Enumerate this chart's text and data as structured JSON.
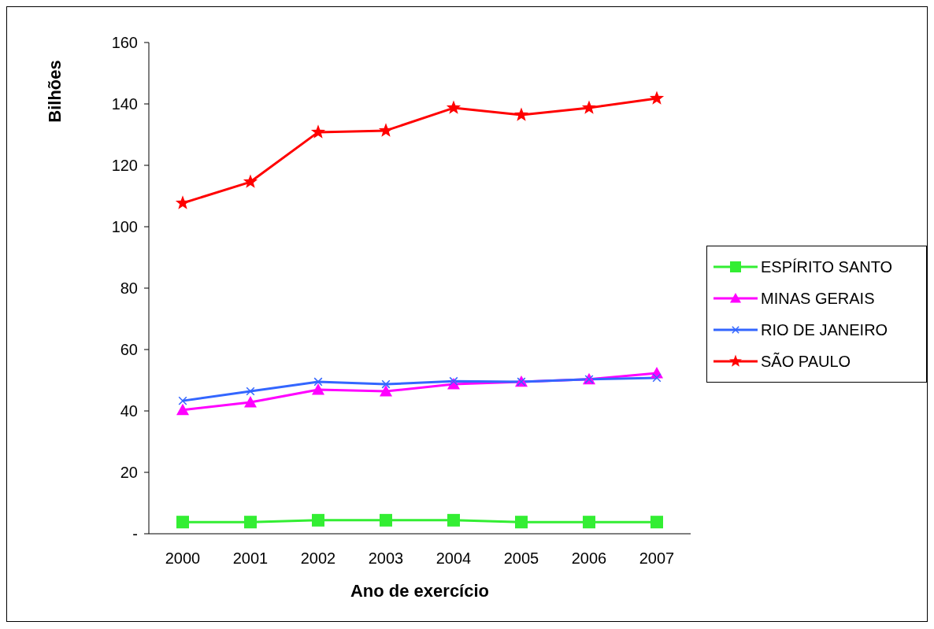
{
  "chart_data": {
    "type": "line",
    "xlabel": "Ano de exercício",
    "ylabel": "Bilhões",
    "categories": [
      "2000",
      "2001",
      "2002",
      "2003",
      "2004",
      "2005",
      "2006",
      "2007"
    ],
    "series": [
      {
        "name": "ESPÍRITO SANTO",
        "color": "#33ee33",
        "marker": "square",
        "values": [
          3.8,
          3.8,
          4.4,
          4.4,
          4.4,
          3.8,
          3.8,
          3.8
        ]
      },
      {
        "name": "MINAS GERAIS",
        "color": "#ff00ff",
        "marker": "triangle",
        "values": [
          40.3,
          42.8,
          46.9,
          46.4,
          48.7,
          49.5,
          50.3,
          52.3
        ]
      },
      {
        "name": "RIO DE JANEIRO",
        "color": "#3366ff",
        "marker": "cross",
        "values": [
          43.3,
          46.4,
          49.5,
          48.7,
          49.7,
          49.5,
          50.3,
          50.8
        ]
      },
      {
        "name": "SÃO PAULO",
        "color": "#ff0000",
        "marker": "star",
        "values": [
          107.7,
          114.6,
          130.8,
          131.3,
          138.7,
          136.4,
          138.7,
          141.8
        ]
      }
    ],
    "ylim": [
      0,
      160
    ],
    "yticks": [
      {
        "value": 0,
        "label": "-"
      },
      20,
      40,
      60,
      80,
      100,
      120,
      140,
      160
    ],
    "grid": false,
    "legend": "right"
  }
}
